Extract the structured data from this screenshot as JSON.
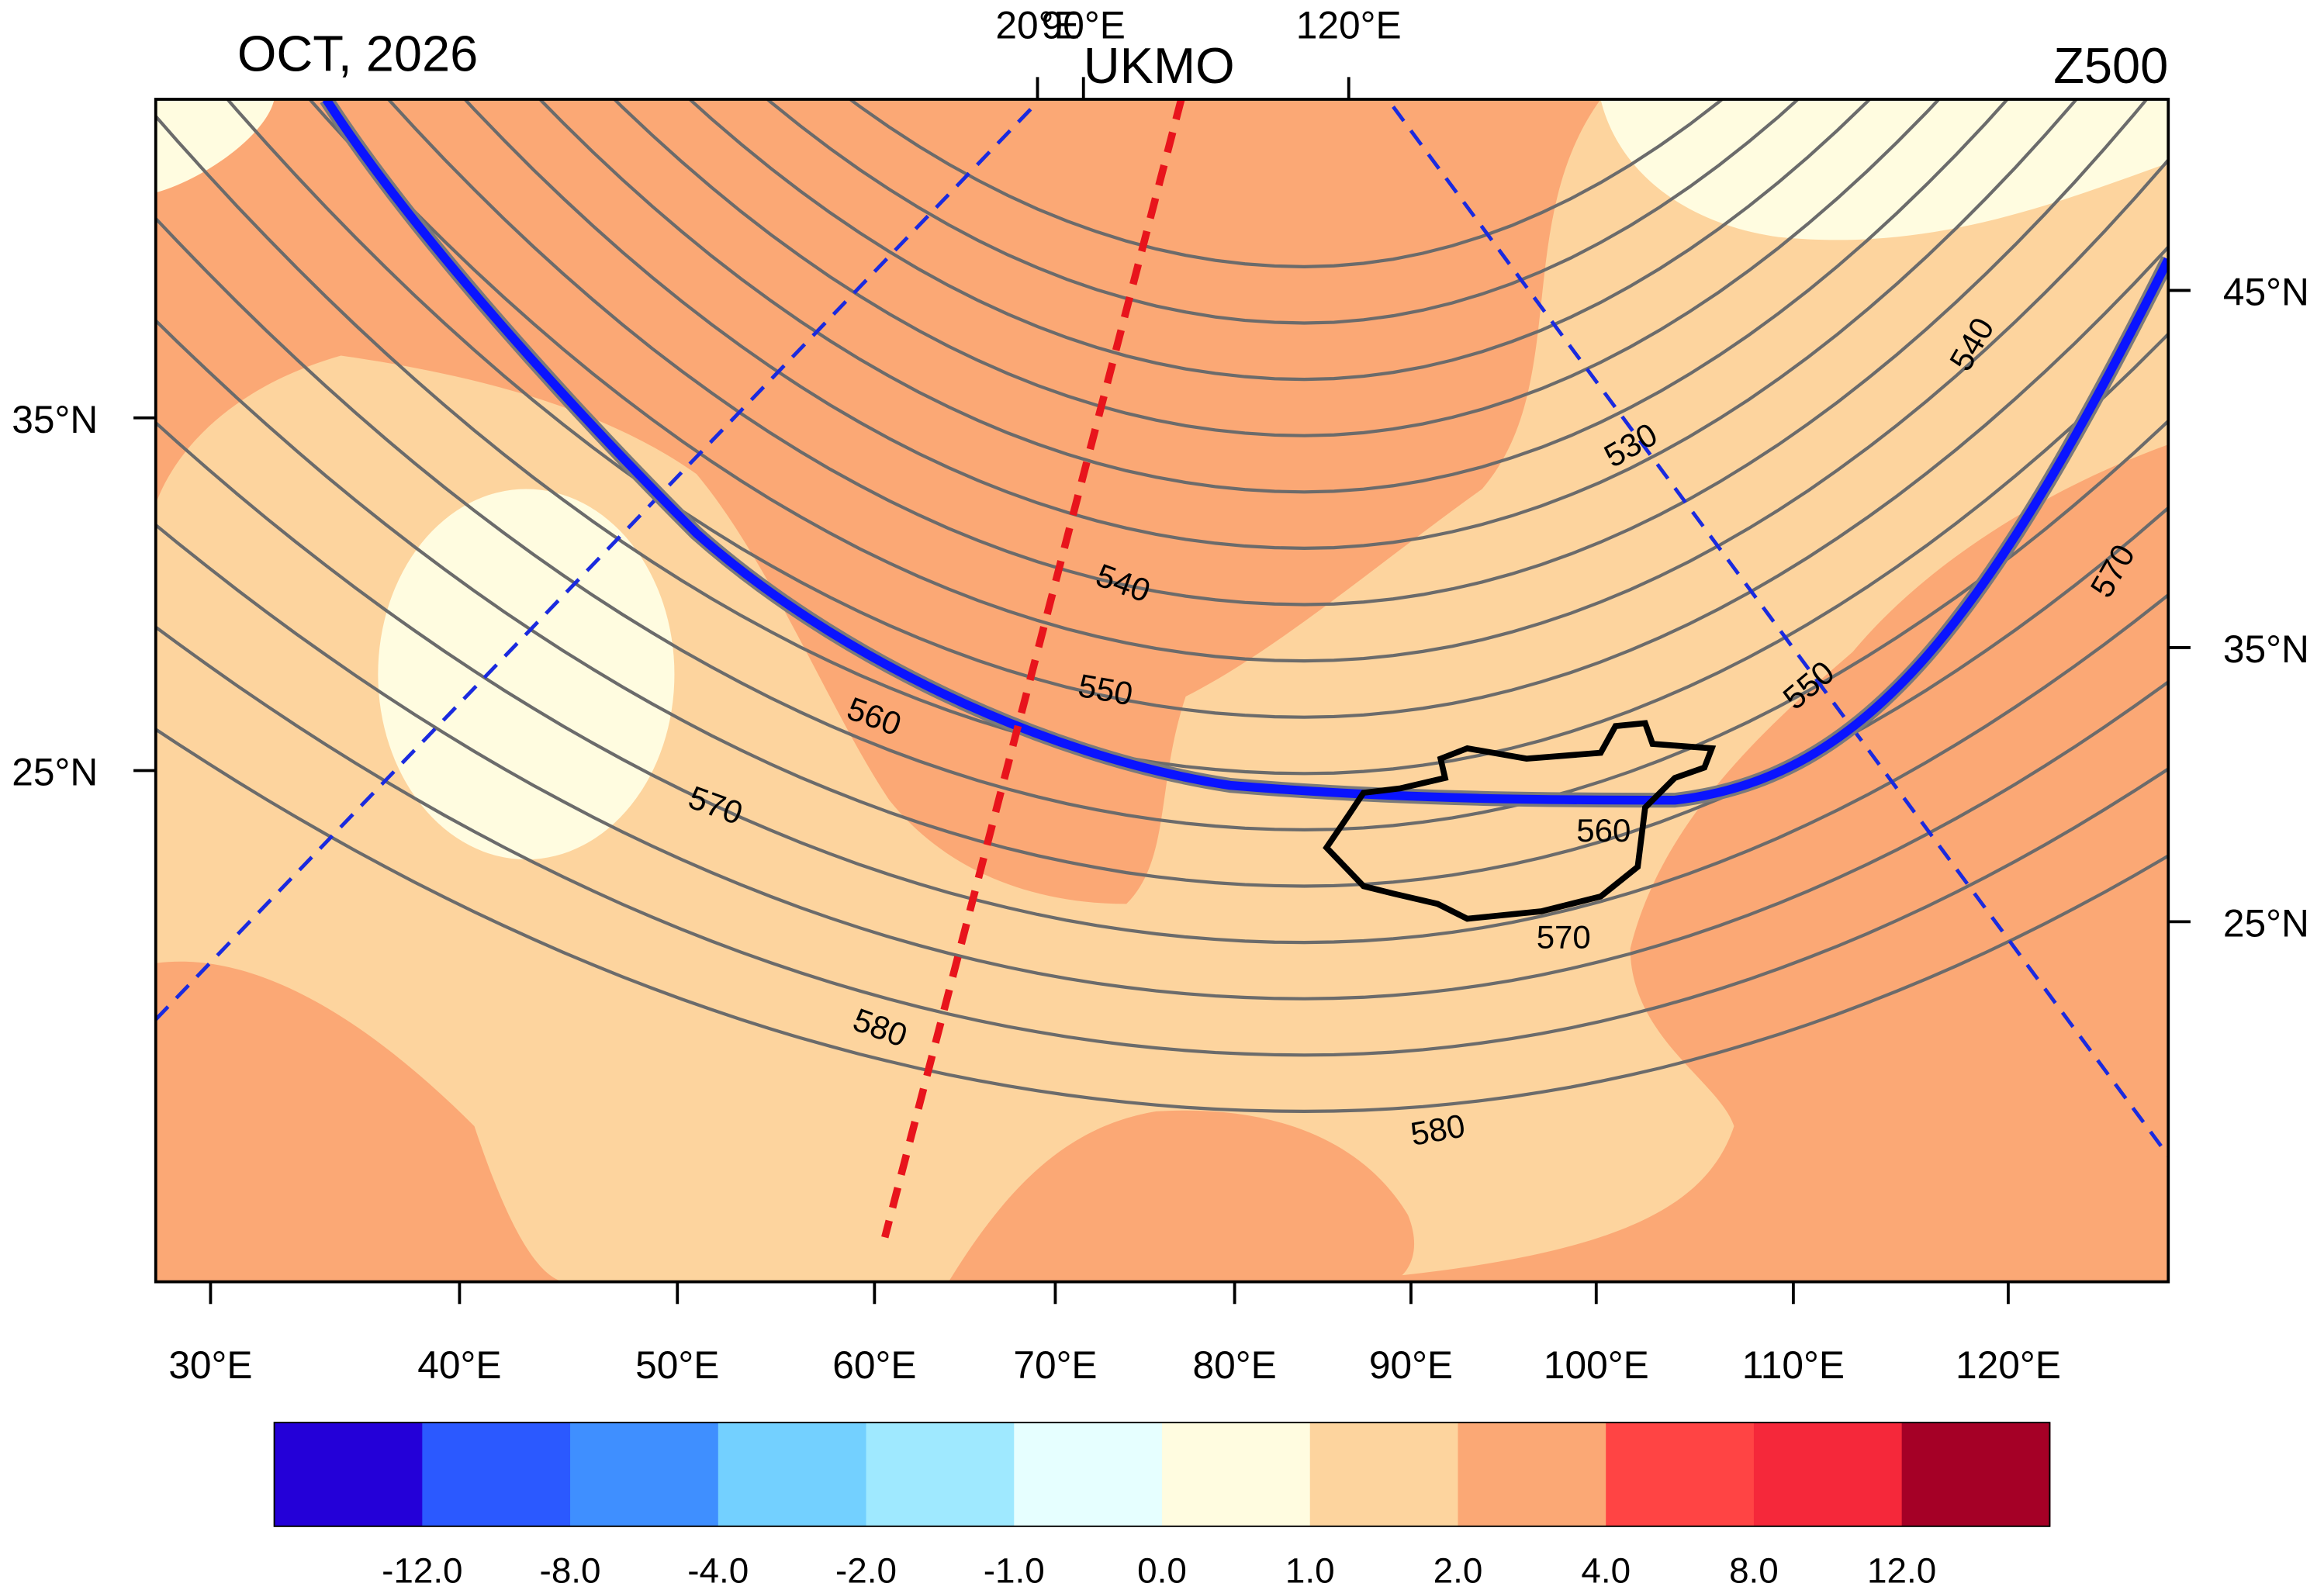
{
  "header": {
    "title": "OCT, 2026",
    "model": "UKMO",
    "variable": "Z500"
  },
  "top_axis": [
    "20°E",
    "90°E",
    "120°E"
  ],
  "left_axis": [
    "35°N",
    "25°N"
  ],
  "right_axis": [
    "45°N",
    "35°N",
    "25°N"
  ],
  "bottom_axis": [
    "30°E",
    "40°E",
    "50°E",
    "60°E",
    "70°E",
    "80°E",
    "90°E",
    "100°E",
    "110°E",
    "120°E"
  ],
  "contour_labels": [
    530,
    540,
    540,
    550,
    550,
    560,
    560,
    570,
    570,
    570,
    580,
    580
  ],
  "colorbar": {
    "colors": [
      "#2400d8",
      "#2b59ff",
      "#3f8fff",
      "#73d0ff",
      "#9fe9ff",
      "#e6ffff",
      "#fffce0",
      "#fdd49e",
      "#fba875",
      "#ff4444",
      "#f5283a",
      "#a50026"
    ],
    "labels": [
      "-12.0",
      "-8.0",
      "-4.0",
      "-2.0",
      "-1.0",
      "0.0",
      "1.0",
      "2.0",
      "4.0",
      "8.0",
      "12.0"
    ]
  }
}
